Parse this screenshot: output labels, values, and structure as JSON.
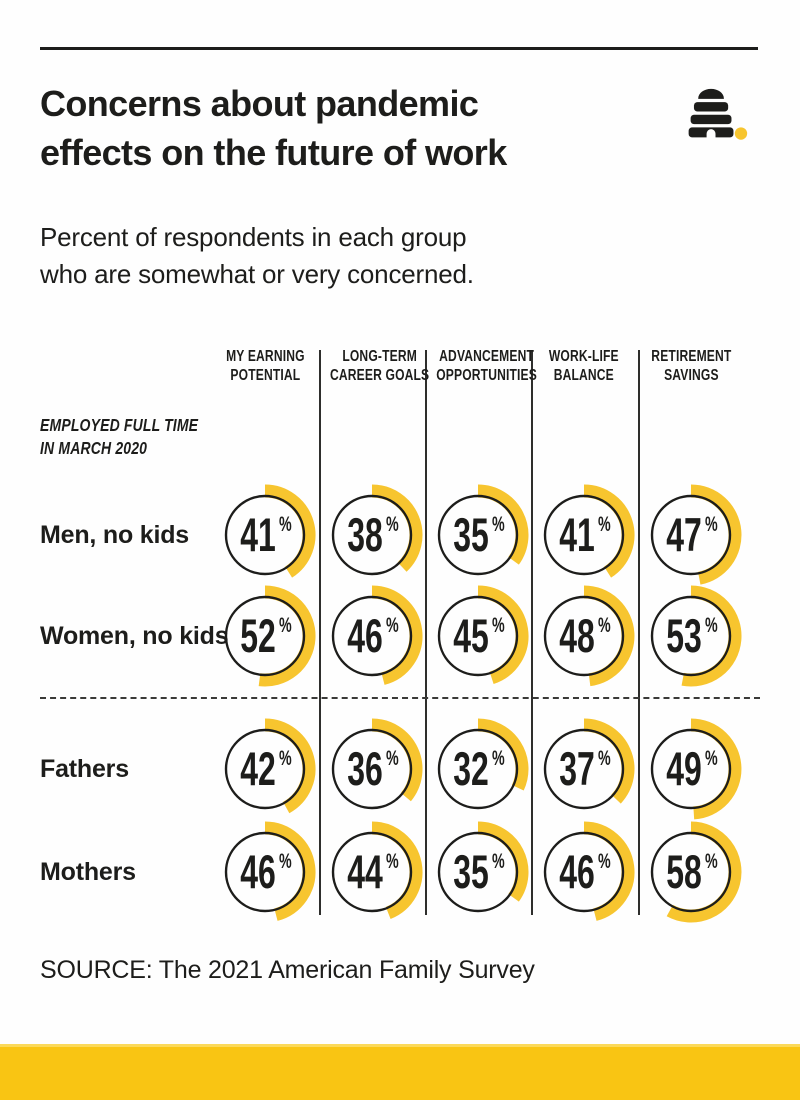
{
  "page": {
    "title_line1": "Concerns about pandemic",
    "title_line2": "effects on the future of work",
    "subtitle_line1": "Percent of respondents in each group",
    "subtitle_line2": "who are somewhat or very concerned.",
    "group_note_line1": "EMPLOYED FULL TIME",
    "group_note_line2": "IN MARCH 2020",
    "source": "SOURCE: The 2021 American Family Survey",
    "logo": "beehive-logo-with-yellow-dot"
  },
  "colors": {
    "ink": "#1d1d1b",
    "accent_yellow": "#f7c52f",
    "bottom_bar_yellow": "#f9c513",
    "background": "#fefefe"
  },
  "chart_data": {
    "type": "pie",
    "variant": "donut-progress small-multiples grid",
    "unit": "%",
    "value_range": [
      0,
      100
    ],
    "title": "Concerns about pandemic effects on the future of work",
    "subtitle": "Percent of respondents in each group who are somewhat or very concerned.",
    "categories": [
      "My earning potential",
      "Long-term career goals",
      "Advancement opportunities",
      "Work-life balance",
      "Retirement savings"
    ],
    "column_headers": [
      [
        "MY EARNING",
        "POTENTIAL"
      ],
      [
        "LONG-TERM",
        "CAREER GOALS"
      ],
      [
        "ADVANCEMENT",
        "OPPORTUNITIES"
      ],
      [
        "WORK-LIFE",
        "BALANCE"
      ],
      [
        "RETIREMENT",
        "SAVINGS"
      ]
    ],
    "series": [
      {
        "name": "Men, no kids",
        "values": [
          41,
          38,
          35,
          41,
          47
        ]
      },
      {
        "name": "Women, no kids",
        "values": [
          52,
          46,
          45,
          48,
          53
        ]
      },
      {
        "name": "Fathers",
        "values": [
          42,
          36,
          32,
          37,
          49
        ]
      },
      {
        "name": "Mothers",
        "values": [
          46,
          44,
          35,
          46,
          58
        ]
      }
    ],
    "group_divider_after_series_index": 1,
    "arc_start": "top",
    "arc_direction": "clockwise",
    "legend_position": "none",
    "source": "SOURCE: The 2021 American Family Survey"
  }
}
